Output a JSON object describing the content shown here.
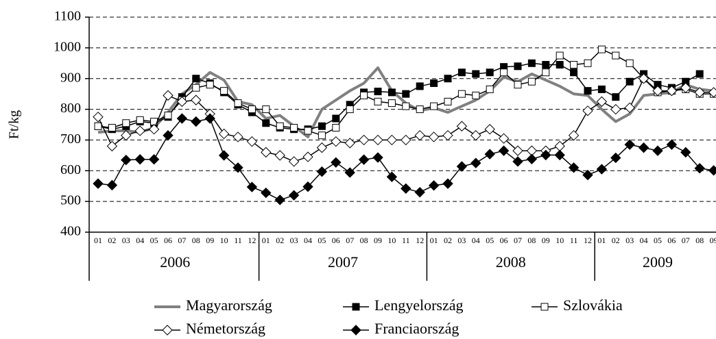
{
  "chart_data": {
    "type": "line",
    "ylabel": "Ft/kg",
    "categories": [
      "01",
      "02",
      "03",
      "04",
      "05",
      "06",
      "07",
      "08",
      "09",
      "10",
      "11",
      "12",
      "01",
      "02",
      "03",
      "04",
      "05",
      "06",
      "07",
      "08",
      "09",
      "10",
      "11",
      "12",
      "01",
      "02",
      "03",
      "04",
      "05",
      "06",
      "07",
      "08",
      "09",
      "10",
      "11",
      "12",
      "01",
      "02",
      "03",
      "04",
      "05",
      "06",
      "07",
      "08",
      "09"
    ],
    "years": [
      "2006",
      "2007",
      "2008",
      "2009"
    ],
    "ylim": [
      400,
      1100
    ],
    "yticks": [
      400,
      500,
      600,
      700,
      800,
      900,
      1000,
      1100
    ],
    "grid": true,
    "series": [
      {
        "name": "Magyarország",
        "color": "#808080",
        "marker": "none",
        "values": [
          725,
          730,
          730,
          725,
          740,
          790,
          850,
          880,
          920,
          895,
          825,
          815,
          770,
          780,
          745,
          710,
          800,
          830,
          860,
          885,
          935,
          860,
          820,
          795,
          805,
          790,
          810,
          830,
          860,
          905,
          890,
          915,
          895,
          875,
          850,
          845,
          800,
          760,
          785,
          845,
          850,
          855,
          880,
          865,
          860
        ]
      },
      {
        "name": "Lengyelország",
        "color": "#000000",
        "marker": "square-filled",
        "values": [
          745,
          735,
          745,
          760,
          755,
          775,
          840,
          900,
          885,
          855,
          815,
          790,
          755,
          740,
          735,
          735,
          745,
          770,
          815,
          855,
          858,
          855,
          850,
          875,
          885,
          900,
          920,
          915,
          920,
          938,
          940,
          950,
          945,
          945,
          920,
          860,
          865,
          840,
          890,
          915,
          880,
          870,
          890,
          915,
          null
        ]
      },
      {
        "name": "Szlovákia",
        "color": "#000000",
        "marker": "square-open",
        "values": [
          745,
          740,
          755,
          765,
          760,
          780,
          830,
          870,
          880,
          860,
          820,
          800,
          800,
          745,
          740,
          730,
          715,
          740,
          800,
          845,
          825,
          820,
          810,
          800,
          810,
          825,
          850,
          845,
          865,
          920,
          880,
          890,
          920,
          975,
          945,
          950,
          995,
          975,
          950,
          900,
          855,
          860,
          865,
          850,
          850
        ]
      },
      {
        "name": "Németország",
        "color": "#000000",
        "marker": "diamond-open",
        "values": [
          775,
          680,
          715,
          730,
          735,
          845,
          825,
          830,
          785,
          720,
          710,
          695,
          660,
          650,
          630,
          645,
          675,
          695,
          690,
          700,
          700,
          700,
          700,
          715,
          710,
          715,
          745,
          715,
          735,
          705,
          665,
          665,
          665,
          680,
          715,
          795,
          825,
          800,
          805,
          900,
          860,
          860,
          870,
          855,
          855
        ]
      },
      {
        "name": "Franciaország",
        "color": "#000000",
        "marker": "diamond-filled",
        "values": [
          558,
          553,
          635,
          637,
          637,
          715,
          770,
          760,
          770,
          650,
          610,
          547,
          528,
          505,
          520,
          548,
          597,
          627,
          594,
          636,
          643,
          580,
          542,
          530,
          552,
          558,
          614,
          625,
          654,
          665,
          630,
          638,
          651,
          651,
          610,
          586,
          605,
          642,
          685,
          675,
          665,
          685,
          660,
          608,
          601
        ]
      }
    ]
  }
}
